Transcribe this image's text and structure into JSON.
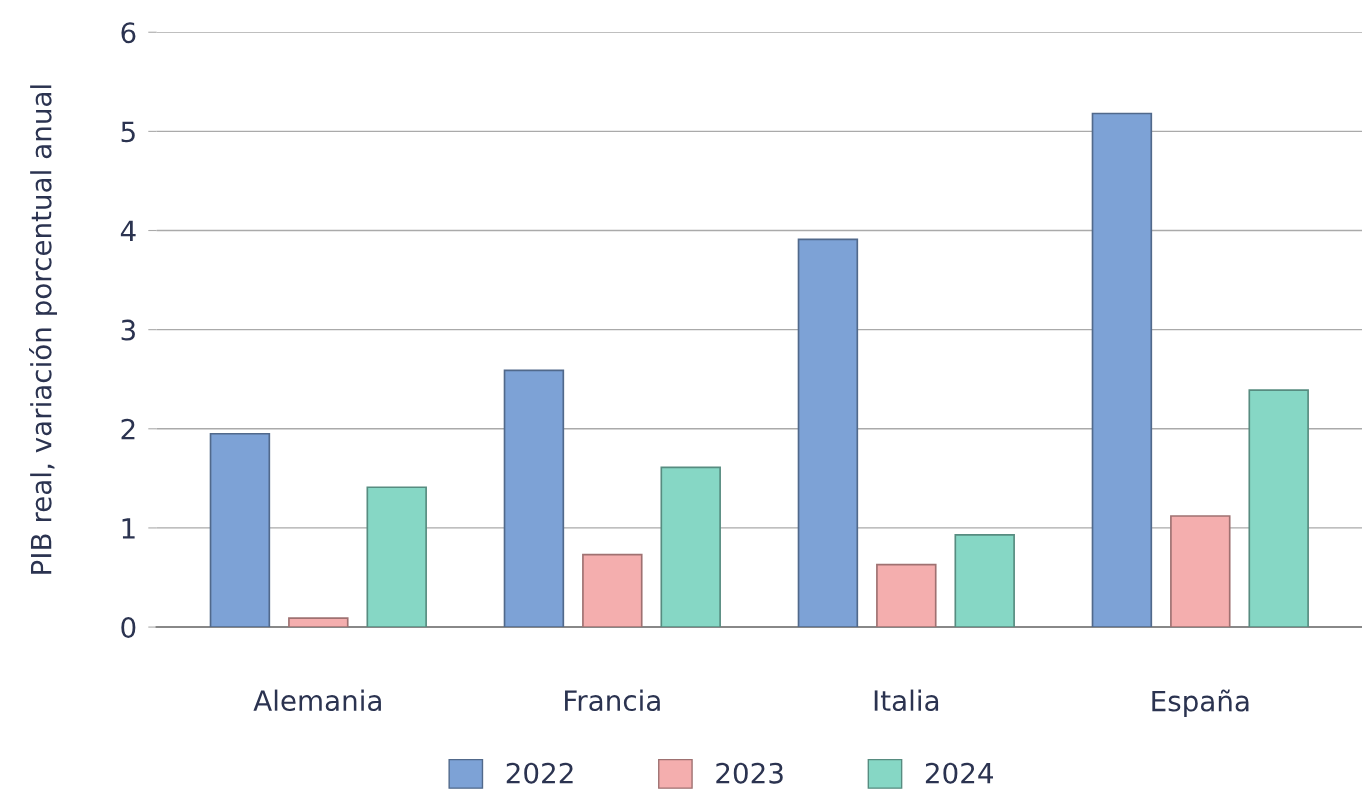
{
  "chart_data": {
    "type": "bar",
    "ylabel": "PIB real, variación porcentual anual",
    "categories": [
      "Alemania",
      "Francia",
      "Italia",
      "España"
    ],
    "series": [
      {
        "name": "2022",
        "color": "#7da2d6",
        "values": [
          1.95,
          2.59,
          3.91,
          5.18
        ]
      },
      {
        "name": "2023",
        "color": "#f4aeae",
        "values": [
          0.09,
          0.73,
          0.63,
          1.12
        ]
      },
      {
        "name": "2024",
        "color": "#86d7c5",
        "values": [
          1.41,
          1.61,
          0.93,
          2.39
        ]
      }
    ],
    "ylim": [
      0,
      6
    ],
    "yticks": [
      0,
      1,
      2,
      3,
      4,
      5,
      6
    ],
    "grid": "y",
    "legend": "bottom"
  }
}
